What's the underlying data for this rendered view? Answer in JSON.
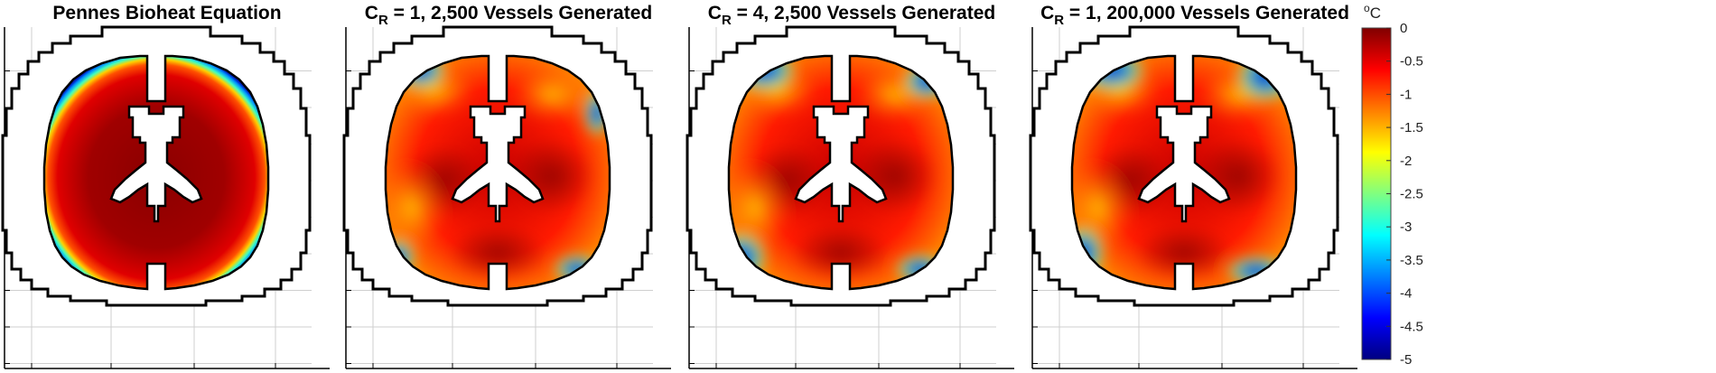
{
  "figure": {
    "panels": [
      {
        "title_main": "Pennes Bioheat Equation",
        "title_sub": "",
        "title_rest": "",
        "variant": "pennes"
      },
      {
        "title_main": "C",
        "title_sub": "R",
        "title_rest": " = 1, 2,500 Vessels Generated",
        "variant": "cr1_2500"
      },
      {
        "title_main": "C",
        "title_sub": "R",
        "title_rest": " = 4, 2,500 Vessels Generated",
        "variant": "cr4_2500"
      },
      {
        "title_main": "C",
        "title_sub": "R",
        "title_rest": " = 1, 200,000 Vessels Generated",
        "variant": "cr1_200000"
      }
    ],
    "colorbar": {
      "unit_sup": "o",
      "unit": "C",
      "ticks": [
        "0",
        "-0.5",
        "-1",
        "-1.5",
        "-2",
        "-2.5",
        "-3",
        "-3.5",
        "-4",
        "-4.5",
        "-5"
      ],
      "min": -5,
      "max": 0,
      "colormap": "jet",
      "colors": [
        "#800000",
        "#ff0000",
        "#ff8000",
        "#ffff00",
        "#80ff80",
        "#00ffff",
        "#0080ff",
        "#0000ff",
        "#000080"
      ]
    }
  }
}
